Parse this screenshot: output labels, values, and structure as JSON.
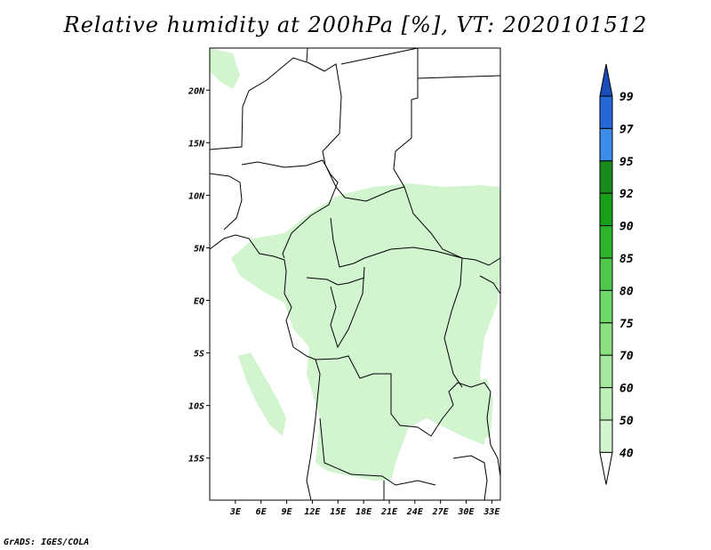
{
  "title": "Relative humidity at 200hPa [%], VT: 2020101512",
  "credit": "GrADS: IGES/COLA",
  "colors": {
    "c40": "#e6fae6",
    "c50": "#d2f5d0",
    "c60": "#bdf0b9",
    "c70": "#a3e89d",
    "c75": "#8be080",
    "c80": "#6ed868",
    "c85": "#4ec94c",
    "c90": "#2cb52b",
    "c92": "#18a018",
    "c95": "#1a8c1c",
    "c97": "#3c8ceb",
    "c99": "#2568d8",
    "cmax": "#1a4db8",
    "border": "#000000"
  },
  "map": {
    "lon_range": [
      0,
      34
    ],
    "lat_range": [
      -19,
      24
    ],
    "lat_ticks": [
      "20N",
      "15N",
      "10N",
      "5N",
      "EQ",
      "5S",
      "10S",
      "15S"
    ],
    "lat_values": [
      20,
      15,
      10,
      5,
      0,
      -5,
      -10,
      -15
    ],
    "lon_ticks": [
      "3E",
      "6E",
      "9E",
      "12E",
      "15E",
      "18E",
      "21E",
      "24E",
      "27E",
      "30E",
      "33E"
    ],
    "lon_values": [
      3,
      6,
      9,
      12,
      15,
      18,
      21,
      24,
      27,
      30,
      33
    ]
  },
  "colorbar": {
    "labels": [
      "99",
      "97",
      "95",
      "92",
      "90",
      "85",
      "80",
      "75",
      "70",
      "60",
      "50",
      "40"
    ]
  }
}
